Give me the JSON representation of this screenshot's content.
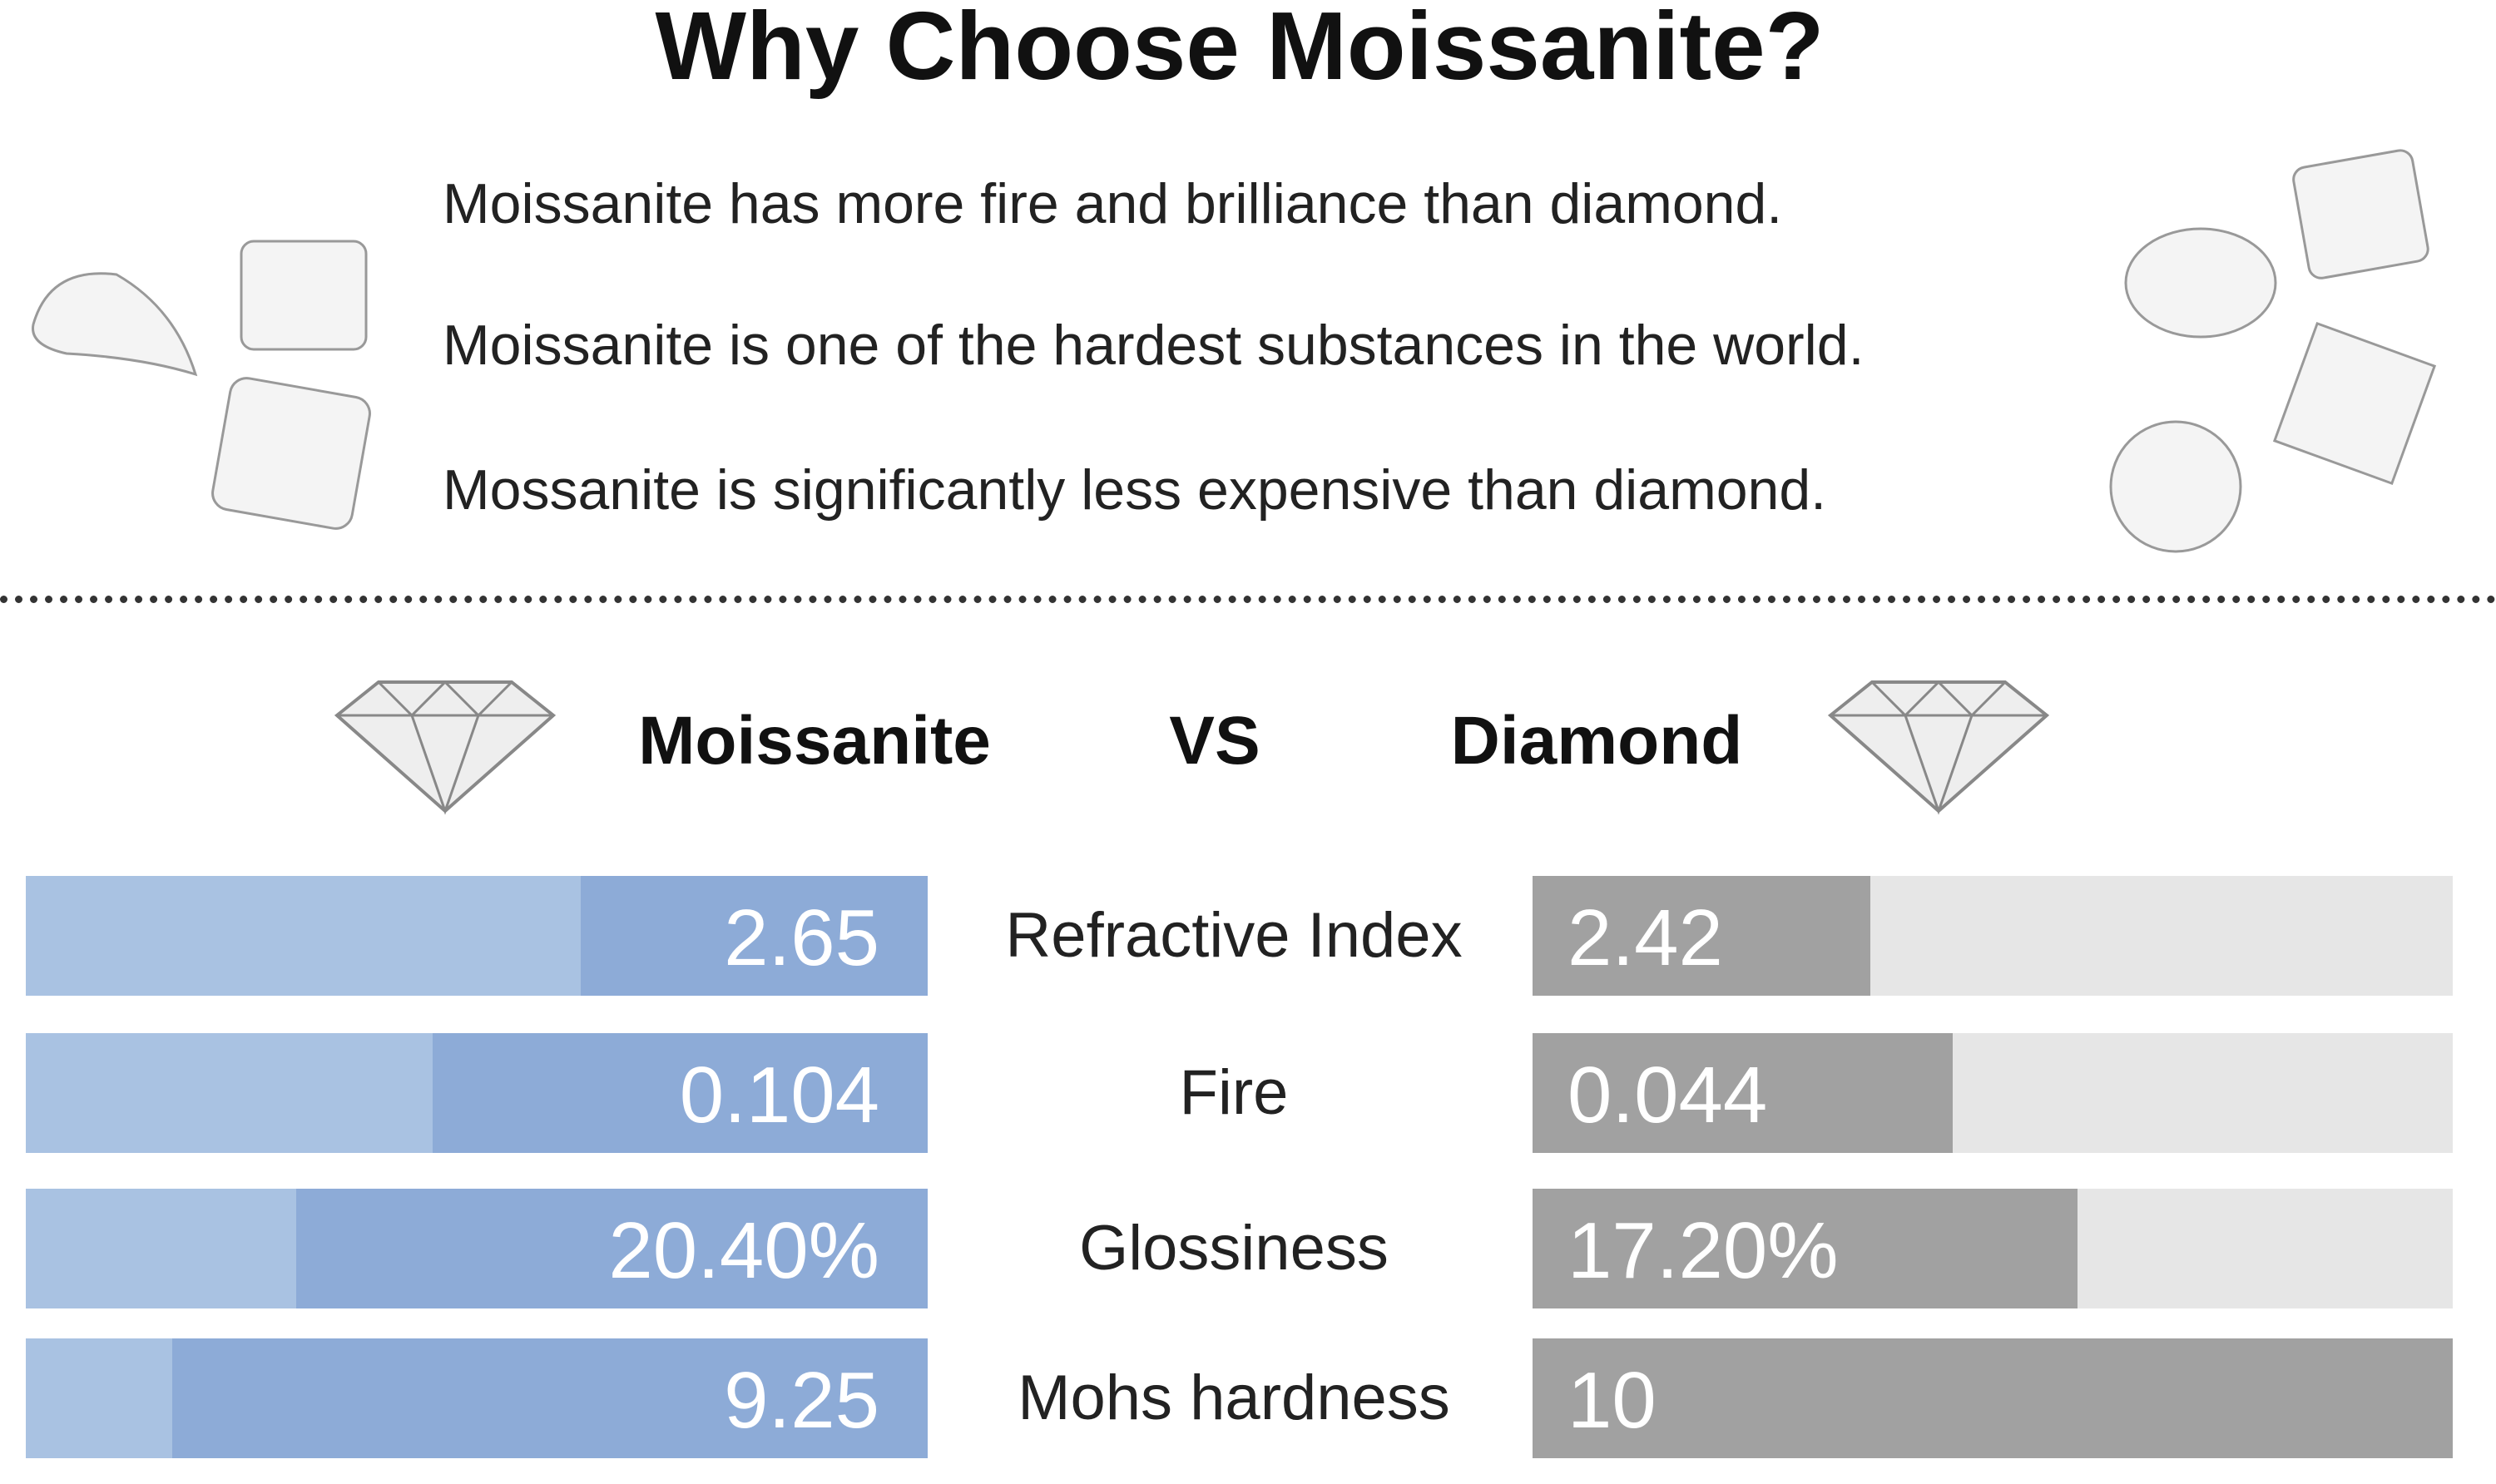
{
  "title": "Why Choose Moissanite?",
  "benefits": [
    "Moissanite has more fire and brilliance than diamond.",
    "Moissanite is one of the hardest substances in the world.",
    "Mossanite is significantly less expensive than diamond."
  ],
  "comparison": {
    "left_name": "Moissanite",
    "vs": "VS",
    "right_name": "Diamond",
    "rows": [
      {
        "property": "Refractive Index",
        "moissanite": "2.65",
        "diamond": "2.42"
      },
      {
        "property": "Fire",
        "moissanite": "0.104",
        "diamond": "0.044"
      },
      {
        "property": "Glossiness",
        "moissanite": "20.40%",
        "diamond": "17.20%"
      },
      {
        "property": "Mohs hardness",
        "moissanite": "9.25",
        "diamond": "10"
      }
    ]
  }
}
